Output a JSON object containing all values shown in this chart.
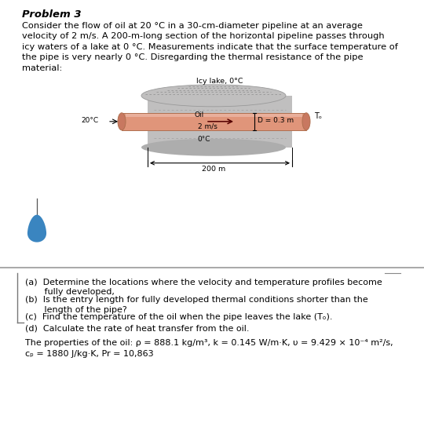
{
  "title": "Problem 3",
  "paragraph": "Consider the flow of oil at 20 °C in a 30-cm-diameter pipeline at an average\nvelocity of 2 m/s. A 200-m-long section of the horizontal pipeline passes through\nicy waters of a lake at 0 °C. Measurements indicate that the surface temperature of\nthe pipe is very nearly 0 °C. Disregarding the thermal resistance of the pipe\nmaterial:",
  "questions": [
    "(a)  Determine the locations where the velocity and temperature profiles become\n       fully developed,",
    "(b)  Is the entry length for fully developed thermal conditions shorter than the\n       length of the pipe?",
    "(c)  Find the temperature of the oil when the pipe leaves the lake (Tₒ).",
    "(d)  Calculate the rate of heat transfer from the oil."
  ],
  "prop_line1": "The properties of the oil: ρ = 888.1 kg/m³, k = 0.145 W/m·K, υ = 9.429 × 10⁻⁴ m²/s,",
  "prop_line2": "cₚ = 1880 J/kg·K, Pr = 10,863",
  "lbl_icy": "Icy lake, 0°C",
  "lbl_0c": "0°C",
  "lbl_oil": "Oil",
  "lbl_vel": "2 m/s",
  "lbl_diam": "D = 0.3 m",
  "lbl_in": "20°C",
  "lbl_out": "Tₒ",
  "lbl_200m": "200 m",
  "bg_white": "#ffffff",
  "bg_gray": "#d8d8d8",
  "pipe_fill": "#e0957a",
  "pipe_edge": "#b07050",
  "pipe_hi": "#eebbaa",
  "lake_fill": "#c0bfbf",
  "lake_dark": "#adadad",
  "teardrop": "#3a85c0",
  "sep_color": "#aaaaaa"
}
